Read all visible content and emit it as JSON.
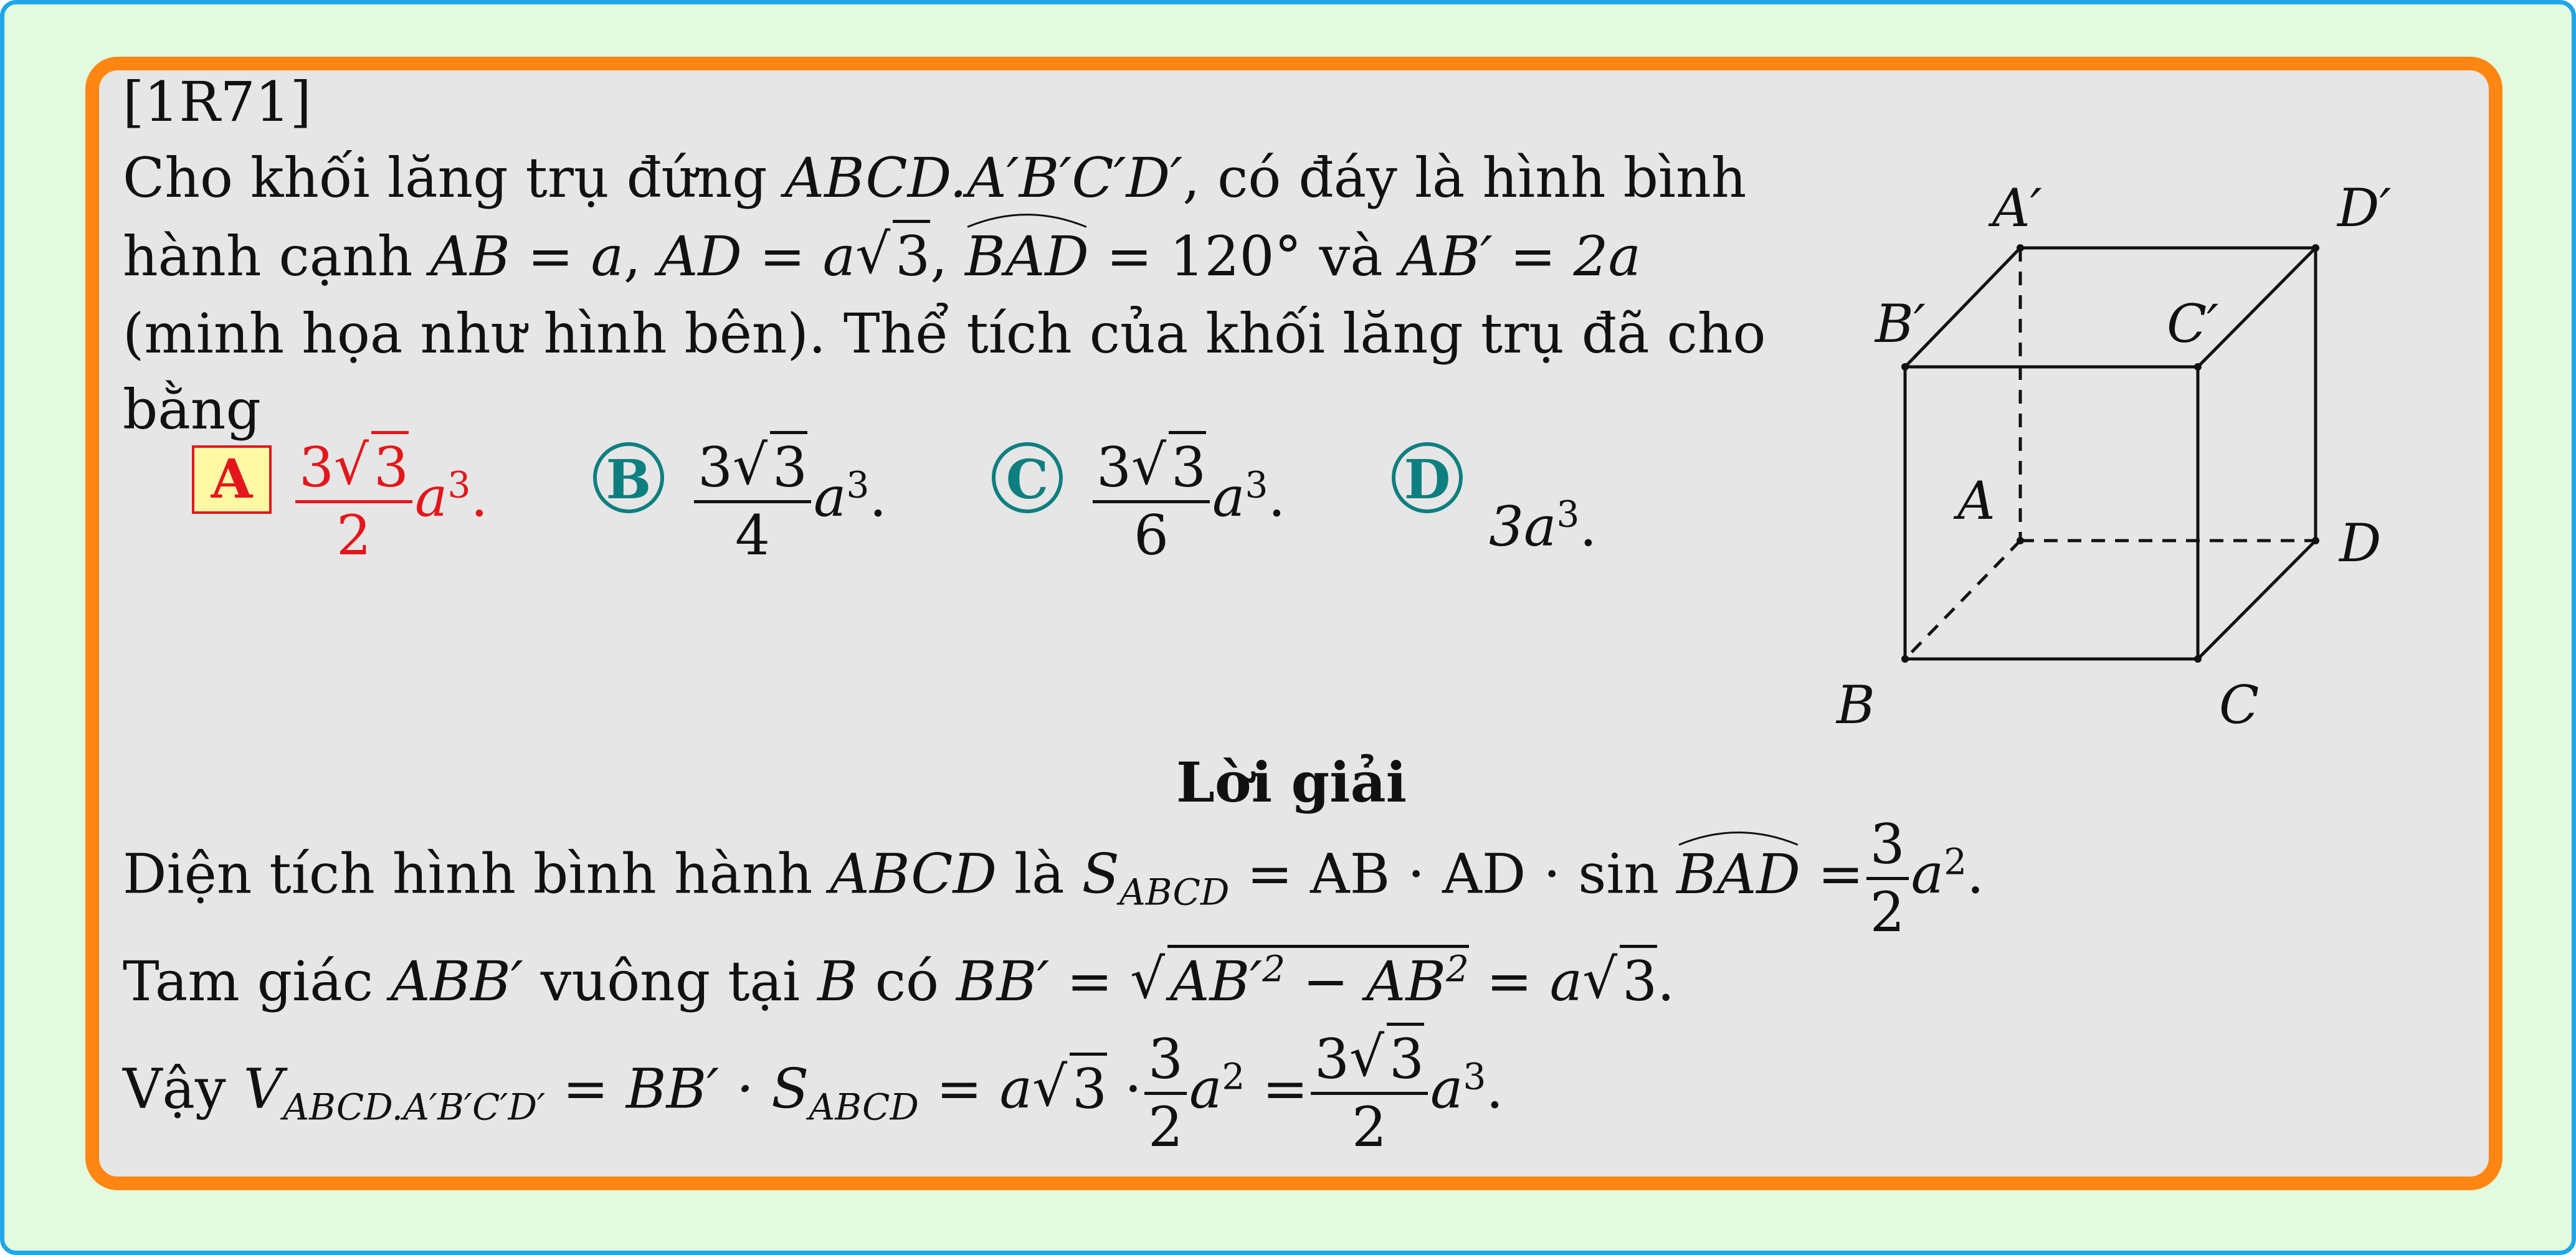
{
  "problem": {
    "id": "[1R71]",
    "line1_a": "Cho khối lăng trụ đứng ",
    "line1_b": "ABCD.A′B′C′D′",
    "line1_c": ", có đáy là hình bình",
    "line2_a": "hành cạnh ",
    "line2_b": "AB = a",
    "line2_c": ", ",
    "line2_d": "AD = a",
    "line2_e": "3",
    "line2_f": ", ",
    "line2_g": "BAD",
    "line2_h": " = 120° và ",
    "line2_i": "AB′ = 2a",
    "line3": "(minh họa như hình bên). Thể tích của khối lăng trụ đã cho",
    "line4": "bằng"
  },
  "options": [
    {
      "letter": "A",
      "num_coef": "3",
      "num_rad": "3",
      "den": "2",
      "tail": "a",
      "exp": "3",
      "dot": "."
    },
    {
      "letter": "B",
      "num_coef": "3",
      "num_rad": "3",
      "den": "4",
      "tail": "a",
      "exp": "3",
      "dot": "."
    },
    {
      "letter": "C",
      "num_coef": "3",
      "num_rad": "3",
      "den": "6",
      "tail": "a",
      "exp": "3",
      "dot": "."
    },
    {
      "letter": "D",
      "text": "3a",
      "exp": "3",
      "dot": "."
    }
  ],
  "figure": {
    "labels": {
      "A1": "A′",
      "D1": "D′",
      "B1": "B′",
      "C1": "C′",
      "A": "A",
      "D": "D",
      "B": "B",
      "C": "C"
    }
  },
  "solution": {
    "heading": "Lời giải",
    "s1_a": "Diện tích hình bình hành ",
    "s1_b": "ABCD",
    "s1_c": " là ",
    "s1_d": "S",
    "s1_e": "ABCD",
    "s1_f": " = AB · AD · sin ",
    "s1_g": "BAD",
    "s1_h": " =",
    "s1_num": "3",
    "s1_den": "2",
    "s1_i": "a",
    "s1_exp": "2",
    "s1_dot": ".",
    "s2_a": "Tam giác ",
    "s2_b": "ABB′",
    "s2_c": " vuông tại ",
    "s2_d": "B",
    "s2_e": " có ",
    "s2_f": "BB′ = ",
    "s2_g": "AB′",
    "s2_g_exp": "2",
    "s2_h": " − AB",
    "s2_h_exp": "2",
    "s2_i": " = a",
    "s2_j": "3",
    "s2_dot": ".",
    "s3_a": "Vậy ",
    "s3_b": "V",
    "s3_c": "ABCD.A′B′C′D′",
    "s3_d": " = BB′ · S",
    "s3_e": "ABCD",
    "s3_f": " = a",
    "s3_g": "3",
    "s3_h": " ·",
    "s3_num1": "3",
    "s3_den1": "2",
    "s3_i": "a",
    "s3_i_exp": "2",
    "s3_j": " =",
    "s3_num2_coef": "3",
    "s3_num2_rad": "3",
    "s3_den2": "2",
    "s3_k": "a",
    "s3_k_exp": "3",
    "s3_dot": "."
  }
}
